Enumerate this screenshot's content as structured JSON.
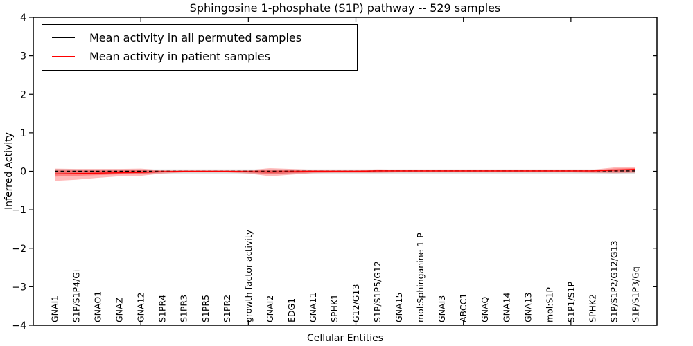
{
  "chart_data": {
    "type": "line",
    "title": "Sphingosine 1-phosphate (S1P) pathway -- 529 samples",
    "xlabel": "Cellular Entities",
    "ylabel": "Inferred Activity",
    "ylim": [
      -4,
      4
    ],
    "yticks": [
      -4,
      -3,
      -2,
      -1,
      0,
      1,
      2,
      3,
      4
    ],
    "xtick_positions": [
      5,
      10,
      15,
      20,
      25
    ],
    "grid": false,
    "legend_position": "upper left",
    "categories": [
      "GNAI1",
      "S1P/S1P4/Gi",
      "GNAO1",
      "GNAZ",
      "GNA12",
      "S1PR4",
      "S1PR3",
      "S1PR5",
      "S1PR2",
      "growth factor activity",
      "GNAI2",
      "EDG1",
      "GNA11",
      "SPHK1",
      "G12/G13",
      "S1P/S1P5/G12",
      "GNA15",
      "mol:Sphinganine-1-P",
      "GNAI3",
      "ABCC1",
      "GNAQ",
      "GNA14",
      "GNA13",
      "mol:S1P",
      "S1P1/S1P",
      "SPHK2",
      "S1P/S1P2/G12/G13",
      "S1P/S1P3/Gq"
    ],
    "series": [
      {
        "name": "Mean activity in all permuted samples",
        "color": "#000000",
        "style": "dashed",
        "values": [
          0.0,
          0.0,
          0.0,
          0.0,
          0.0,
          0.0,
          0.0,
          0.0,
          0.0,
          0.0,
          0.0,
          0.0,
          0.0,
          0.0,
          0.0,
          0.01,
          0.01,
          0.01,
          0.01,
          0.01,
          0.01,
          0.01,
          0.01,
          0.01,
          0.01,
          0.01,
          0.01,
          0.01
        ]
      },
      {
        "name": "Mean activity in patient samples",
        "color": "#ff0000",
        "style": "solid",
        "values": [
          -0.07,
          -0.06,
          -0.05,
          -0.04,
          -0.03,
          -0.01,
          0.0,
          0.0,
          0.0,
          -0.01,
          -0.02,
          -0.01,
          0.0,
          0.0,
          0.0,
          0.01,
          0.01,
          0.01,
          0.01,
          0.01,
          0.01,
          0.01,
          0.01,
          0.01,
          0.01,
          0.01,
          0.03,
          0.05
        ]
      }
    ],
    "bands": [
      {
        "name": "permuted-samples-range",
        "color": "#000000",
        "opacity": 0.13,
        "upper": [
          0.06,
          0.05,
          0.05,
          0.05,
          0.05,
          0.05,
          0.05,
          0.05,
          0.05,
          0.05,
          0.05,
          0.05,
          0.05,
          0.05,
          0.05,
          0.05,
          0.05,
          0.05,
          0.05,
          0.05,
          0.05,
          0.05,
          0.05,
          0.05,
          0.05,
          0.05,
          0.05,
          0.05
        ],
        "lower": [
          -0.07,
          -0.06,
          -0.06,
          -0.06,
          -0.06,
          -0.06,
          -0.06,
          -0.06,
          -0.06,
          -0.06,
          -0.06,
          -0.06,
          -0.06,
          -0.06,
          -0.06,
          -0.06,
          -0.06,
          -0.06,
          -0.06,
          -0.06,
          -0.06,
          -0.06,
          -0.06,
          -0.06,
          -0.06,
          -0.06,
          -0.07,
          -0.07
        ]
      },
      {
        "name": "patient-samples-range-outer",
        "color": "#ff0000",
        "opacity": 0.27,
        "upper": [
          0.07,
          0.06,
          0.06,
          0.06,
          0.07,
          0.03,
          0.02,
          0.02,
          0.02,
          0.03,
          0.08,
          0.06,
          0.04,
          0.03,
          0.03,
          0.05,
          0.04,
          0.04,
          0.04,
          0.04,
          0.04,
          0.04,
          0.04,
          0.04,
          0.03,
          0.04,
          0.1,
          0.1
        ],
        "lower": [
          -0.25,
          -0.22,
          -0.17,
          -0.13,
          -0.12,
          -0.06,
          -0.03,
          -0.03,
          -0.03,
          -0.06,
          -0.13,
          -0.09,
          -0.05,
          -0.04,
          -0.04,
          -0.04,
          -0.03,
          -0.03,
          -0.03,
          -0.03,
          -0.03,
          -0.03,
          -0.03,
          -0.03,
          -0.03,
          -0.04,
          -0.05,
          -0.04
        ]
      },
      {
        "name": "patient-samples-range-inner",
        "color": "#ff0000",
        "opacity": 0.3,
        "upper": [
          0.02,
          0.02,
          0.02,
          0.02,
          0.03,
          0.01,
          0.01,
          0.01,
          0.01,
          0.01,
          0.04,
          0.03,
          0.02,
          0.01,
          0.01,
          0.03,
          0.02,
          0.02,
          0.02,
          0.02,
          0.02,
          0.02,
          0.02,
          0.02,
          0.01,
          0.02,
          0.07,
          0.08
        ],
        "lower": [
          -0.14,
          -0.12,
          -0.1,
          -0.08,
          -0.07,
          -0.03,
          -0.01,
          -0.01,
          -0.01,
          -0.03,
          -0.08,
          -0.05,
          -0.03,
          -0.02,
          -0.02,
          -0.02,
          -0.01,
          -0.01,
          -0.01,
          -0.01,
          -0.01,
          -0.01,
          -0.01,
          -0.01,
          -0.01,
          -0.02,
          -0.03,
          -0.02
        ]
      }
    ]
  }
}
